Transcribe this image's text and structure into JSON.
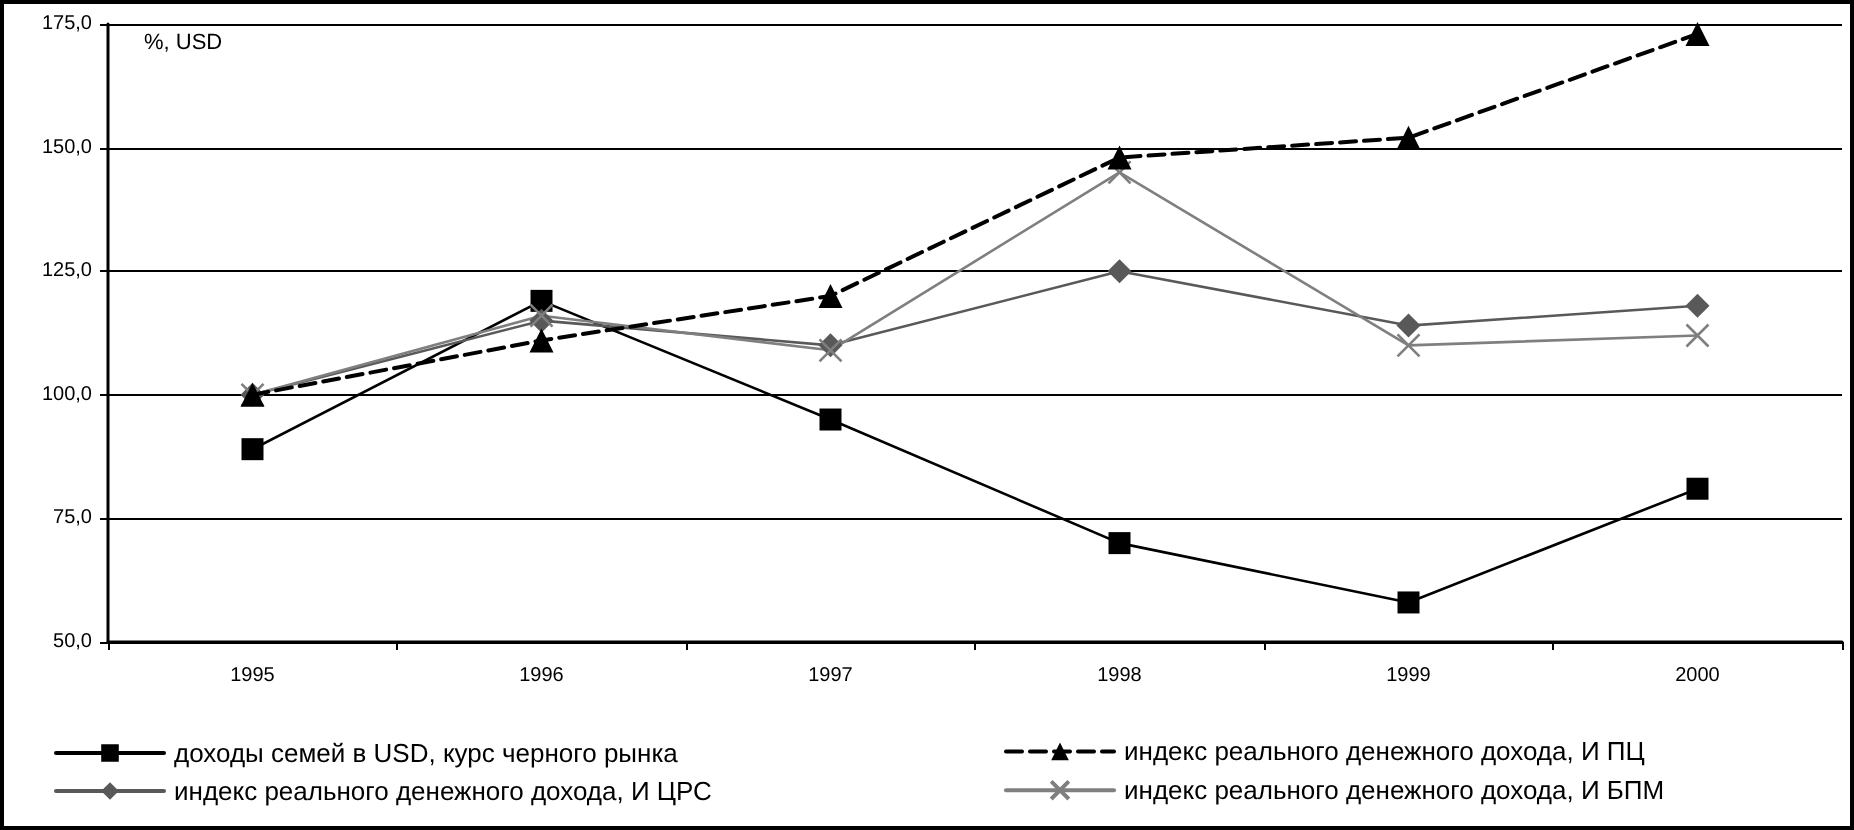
{
  "chart_data": {
    "type": "line",
    "annotations": [
      "%, USD"
    ],
    "categories": [
      "1995",
      "1996",
      "1997",
      "1998",
      "1999",
      "2000"
    ],
    "series": [
      {
        "name": "доходы семей в USD, курс черного рынка",
        "color": "#000000",
        "marker": "square",
        "line_style": "solid",
        "values": [
          89,
          119,
          95,
          70,
          58,
          81
        ]
      },
      {
        "name": "индекс реального денежного дохода, И ПЦ",
        "color": "#000000",
        "marker": "triangle",
        "line_style": "dashed",
        "values": [
          100,
          111,
          120,
          148,
          152,
          173
        ]
      },
      {
        "name": "индекс реального денежного дохода, И ЦРС",
        "color": "#595959",
        "marker": "diamond",
        "line_style": "solid",
        "values": [
          100,
          115,
          110,
          125,
          114,
          118
        ]
      },
      {
        "name": "индекс реального денежного дохода, И БПМ",
        "color": "#7f7f7f",
        "marker": "cross",
        "line_style": "solid",
        "values": [
          100,
          116,
          109,
          145,
          110,
          112
        ]
      }
    ],
    "ylim": [
      50,
      175
    ],
    "yticks": [
      {
        "value": 50,
        "label": "50,0"
      },
      {
        "value": 75,
        "label": "75,0"
      },
      {
        "value": 100,
        "label": "100,0"
      },
      {
        "value": 125,
        "label": "125,0"
      },
      {
        "value": 150,
        "label": "150,0"
      },
      {
        "value": 175,
        "label": "175,0"
      }
    ],
    "grid": "y",
    "legend": "bottom"
  }
}
